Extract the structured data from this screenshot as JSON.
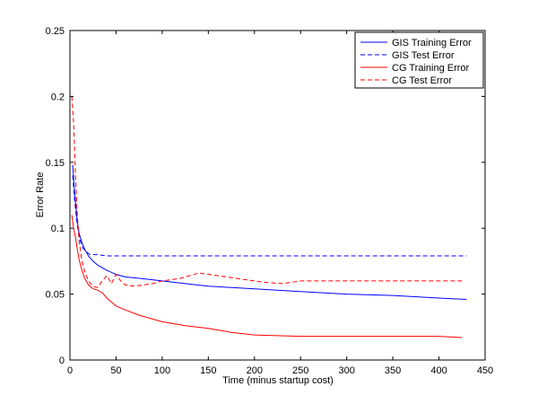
{
  "chart_data": {
    "type": "line",
    "title": "",
    "xlabel": "Time (minus startup cost)",
    "ylabel": "Error Rate",
    "xlim": [
      0,
      450
    ],
    "ylim": [
      0,
      0.25
    ],
    "xticks": [
      0,
      50,
      100,
      150,
      200,
      250,
      300,
      350,
      400,
      450
    ],
    "yticks": [
      0,
      0.05,
      0.1,
      0.15,
      0.2,
      0.25
    ],
    "xtick_labels": [
      "0",
      "50",
      "100",
      "150",
      "200",
      "250",
      "300",
      "350",
      "400",
      "450"
    ],
    "ytick_labels": [
      "0",
      "0.05",
      "0.1",
      "0.15",
      "0.2",
      "0.25"
    ],
    "grid": false,
    "legend_position": "top-right",
    "series": [
      {
        "name": "GIS Training Error",
        "color": "#0000ff",
        "dash": "solid",
        "x": [
          3,
          5,
          8,
          10,
          13,
          16,
          20,
          25,
          30,
          40,
          50,
          60,
          75,
          100,
          125,
          150,
          200,
          250,
          300,
          350,
          400,
          430
        ],
        "y": [
          0.148,
          0.128,
          0.105,
          0.096,
          0.089,
          0.084,
          0.079,
          0.075,
          0.072,
          0.068,
          0.065,
          0.063,
          0.062,
          0.06,
          0.058,
          0.056,
          0.054,
          0.052,
          0.05,
          0.049,
          0.047,
          0.046
        ]
      },
      {
        "name": "GIS Test Error",
        "color": "#0000ff",
        "dash": "dashed",
        "x": [
          3,
          5,
          8,
          11,
          14,
          18,
          22,
          30,
          40,
          60,
          100,
          150,
          200,
          250,
          300,
          350,
          400,
          430
        ],
        "y": [
          0.14,
          0.122,
          0.102,
          0.091,
          0.085,
          0.082,
          0.08,
          0.08,
          0.079,
          0.079,
          0.079,
          0.079,
          0.079,
          0.079,
          0.079,
          0.079,
          0.079,
          0.079
        ]
      },
      {
        "name": "CG Training Error",
        "color": "#ff0000",
        "dash": "solid",
        "x": [
          2,
          4,
          6,
          8,
          10,
          13,
          16,
          20,
          25,
          30,
          35,
          40,
          45,
          50,
          60,
          75,
          100,
          125,
          150,
          175,
          200,
          250,
          300,
          350,
          400,
          425
        ],
        "y": [
          0.11,
          0.1,
          0.093,
          0.084,
          0.076,
          0.068,
          0.062,
          0.057,
          0.054,
          0.053,
          0.051,
          0.047,
          0.044,
          0.041,
          0.038,
          0.034,
          0.029,
          0.026,
          0.024,
          0.021,
          0.019,
          0.018,
          0.018,
          0.018,
          0.018,
          0.017
        ]
      },
      {
        "name": "CG Test Error",
        "color": "#ff0000",
        "dash": "dashed",
        "x": [
          2,
          4,
          6,
          8,
          10,
          13,
          16,
          20,
          25,
          30,
          35,
          40,
          45,
          50,
          55,
          60,
          70,
          80,
          90,
          100,
          110,
          120,
          130,
          140,
          150,
          160,
          170,
          180,
          190,
          200,
          210,
          230,
          250,
          300,
          350,
          400,
          425
        ],
        "y": [
          0.2,
          0.18,
          0.14,
          0.11,
          0.09,
          0.075,
          0.067,
          0.06,
          0.056,
          0.055,
          0.06,
          0.064,
          0.058,
          0.065,
          0.06,
          0.057,
          0.056,
          0.057,
          0.058,
          0.06,
          0.061,
          0.062,
          0.064,
          0.066,
          0.065,
          0.064,
          0.063,
          0.062,
          0.061,
          0.06,
          0.059,
          0.058,
          0.06,
          0.06,
          0.06,
          0.06,
          0.06
        ]
      }
    ]
  }
}
